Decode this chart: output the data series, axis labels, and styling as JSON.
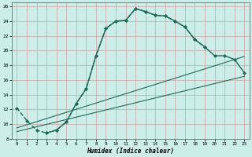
{
  "xlabel": "Humidex (Indice chaleur)",
  "ylabel": "",
  "bg_color": "#cceee8",
  "line_color": "#1a6b5a",
  "grid_color": "#d4a0a0",
  "xlim": [
    -0.5,
    23.5
  ],
  "ylim": [
    8,
    26.5
  ],
  "xticks": [
    0,
    1,
    2,
    3,
    4,
    5,
    6,
    7,
    8,
    9,
    10,
    11,
    12,
    13,
    14,
    15,
    16,
    17,
    18,
    19,
    20,
    21,
    22,
    23
  ],
  "yticks": [
    8,
    10,
    12,
    14,
    16,
    18,
    20,
    22,
    24,
    26
  ],
  "series": [
    {
      "x": [
        0,
        1,
        2,
        3,
        4,
        5,
        6,
        7,
        8,
        9,
        10,
        11,
        12,
        13,
        14,
        15,
        16,
        17,
        18,
        19
      ],
      "y": [
        12.2,
        10.5,
        9.2,
        8.8,
        9.2,
        10.3,
        12.8,
        14.8,
        19.3,
        23.0,
        24.0,
        24.1,
        25.7,
        25.3,
        24.8,
        24.7,
        24.0,
        23.2,
        21.5,
        20.5
      ],
      "marker": "D",
      "markersize": 2.0,
      "linewidth": 1.0,
      "linestyle": "--"
    },
    {
      "x": [
        3,
        4,
        5,
        6,
        7,
        8,
        9,
        10,
        11,
        12,
        13,
        14,
        15,
        16,
        17,
        18,
        19,
        20,
        21,
        22,
        23
      ],
      "y": [
        8.8,
        9.2,
        10.3,
        12.8,
        14.8,
        19.3,
        23.0,
        24.0,
        24.1,
        25.7,
        25.3,
        24.8,
        24.7,
        24.0,
        23.2,
        21.5,
        20.5,
        19.3,
        19.3,
        18.8,
        17.0
      ],
      "marker": "D",
      "markersize": 2.0,
      "linewidth": 1.0,
      "linestyle": "-"
    },
    {
      "x": [
        0,
        23
      ],
      "y": [
        9.5,
        19.2
      ],
      "marker": null,
      "markersize": 0,
      "linewidth": 0.8,
      "linestyle": "-"
    },
    {
      "x": [
        0,
        23
      ],
      "y": [
        9.0,
        16.5
      ],
      "marker": null,
      "markersize": 0,
      "linewidth": 0.8,
      "linestyle": "-"
    }
  ]
}
